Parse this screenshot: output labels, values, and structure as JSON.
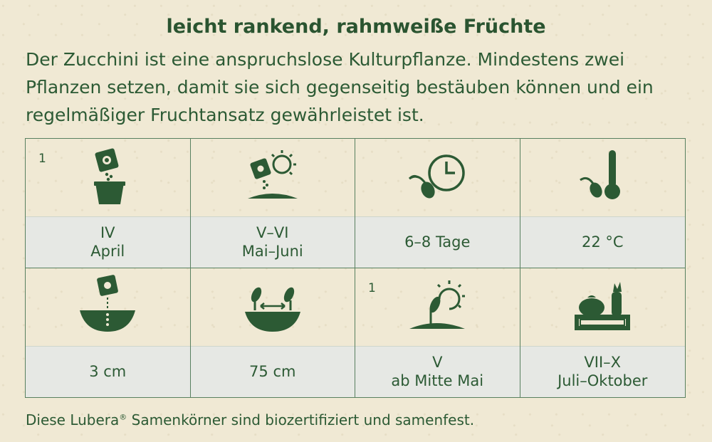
{
  "subtitle": "leicht rankend, rahmweiße Früchte",
  "description": "Der Zucchini ist eine anspruchslose Kulturpflanze. Mindestens zwei Pflanzen setzen, damit sie sich gegenseitig bestäuben können und ein regelmäßiger Fruchtansatz gewährleistet ist.",
  "cells": [
    {
      "icon": "seed-packet-pot-icon",
      "note": "1",
      "line1": "IV",
      "line2": "April"
    },
    {
      "icon": "sow-outdoors-sun-icon",
      "note": "",
      "line1": "V–VI",
      "line2": "Mai–Juni"
    },
    {
      "icon": "germination-time-icon",
      "note": "",
      "line1": "6–8 Tage",
      "line2": ""
    },
    {
      "icon": "germination-temperature-icon",
      "note": "",
      "line1": "22 °C",
      "line2": ""
    },
    {
      "icon": "sowing-depth-icon",
      "note": "",
      "line1": "3 cm",
      "line2": ""
    },
    {
      "icon": "plant-spacing-icon",
      "note": "",
      "line1": "75 cm",
      "line2": ""
    },
    {
      "icon": "plant-out-icon",
      "note": "1",
      "line1": "V",
      "line2": "ab Mitte Mai"
    },
    {
      "icon": "harvest-crate-icon",
      "note": "",
      "line1": "VII–X",
      "line2": "Juli–Oktober"
    }
  ],
  "footer": {
    "text_before": "Diese Lubera",
    "registered_mark": "®",
    "text_after": " Samenkörner sind biozertifiziert und samenfest."
  },
  "colors": {
    "primary_green": "#2c5a34",
    "background": "#f0e9d4",
    "label_band": "#e6e8e4"
  }
}
